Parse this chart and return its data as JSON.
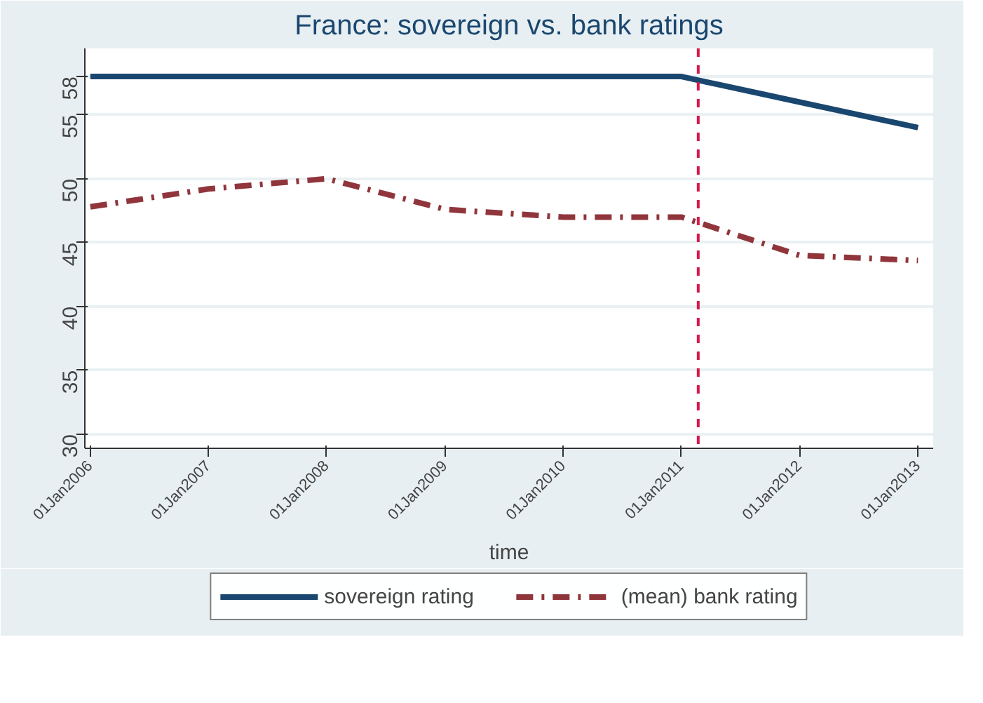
{
  "chart_data": {
    "type": "line",
    "title": "France: sovereign vs. bank ratings",
    "xlabel": "time",
    "x": [
      "2006-01-01",
      "2007-01-01",
      "2008-01-01",
      "2009-01-01",
      "2010-01-01",
      "2011-01-01",
      "2012-01-01",
      "2013-01-01"
    ],
    "series": [
      {
        "name": "sovereign rating",
        "color": "#1a476f",
        "line_style": "solid",
        "values": [
          58,
          58,
          58,
          58,
          58,
          58,
          56,
          54
        ]
      },
      {
        "name": "(mean) bank rating",
        "color": "#90353b",
        "line_style": "dashdot",
        "values": [
          47.8,
          49.2,
          50,
          47.6,
          47,
          47,
          44,
          43.6
        ]
      }
    ],
    "xlim": [
      "2005-12-15",
      "2013-02-17"
    ],
    "xticks": [
      {
        "value": "2006-01-01",
        "label": "01Jan2006"
      },
      {
        "value": "2007-01-01",
        "label": "01Jan2007"
      },
      {
        "value": "2008-01-01",
        "label": "01Jan2008"
      },
      {
        "value": "2009-01-01",
        "label": "01Jan2009"
      },
      {
        "value": "2010-01-01",
        "label": "01Jan2010"
      },
      {
        "value": "2011-01-01",
        "label": "01Jan2011"
      },
      {
        "value": "2012-01-01",
        "label": "01Jan2012"
      },
      {
        "value": "2013-01-01",
        "label": "01Jan2013"
      }
    ],
    "ylim": [
      28.9,
      60.2
    ],
    "yticks": [
      30,
      35,
      40,
      45,
      50,
      55,
      58
    ],
    "ref_lines": [
      {
        "axis": "x",
        "value": "2011-02-22",
        "color": "#d7194b",
        "line_style": "dashed"
      }
    ],
    "grid": "y",
    "legend": "bottom",
    "marker": "none"
  }
}
